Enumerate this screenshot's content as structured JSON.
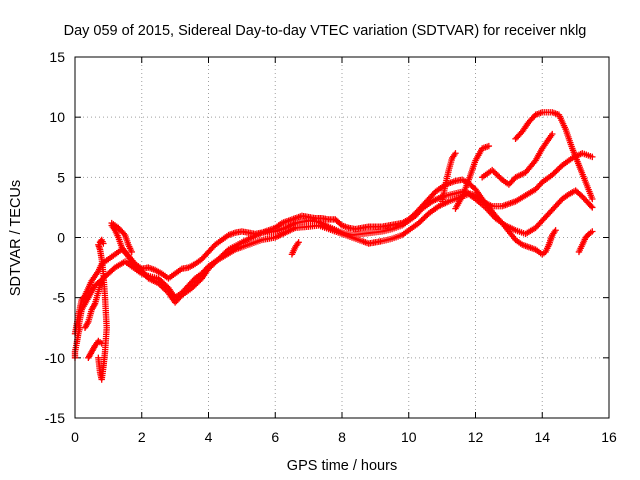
{
  "chart_data": {
    "type": "scatter",
    "title": "Day 059 of 2015, Sidereal Day-to-day VTEC variation (SDTVAR) for receiver nklg",
    "xlabel": "GPS time / hours",
    "ylabel": "SDTVAR / TECUs",
    "xlim": [
      0,
      16
    ],
    "ylim": [
      -15,
      15
    ],
    "xticks": [
      0,
      2,
      4,
      6,
      8,
      10,
      12,
      14,
      16
    ],
    "yticks": [
      -15,
      -10,
      -5,
      0,
      5,
      10,
      15
    ],
    "grid": true,
    "marker": "+",
    "color": "#ff0000",
    "series": [
      {
        "name": "trace-1",
        "points": [
          [
            0.0,
            -8.0
          ],
          [
            0.1,
            -6.5
          ],
          [
            0.2,
            -5.2
          ],
          [
            0.3,
            -4.8
          ],
          [
            0.4,
            -4.2
          ],
          [
            0.5,
            -3.6
          ],
          [
            0.6,
            -3.2
          ],
          [
            0.7,
            -2.8
          ],
          [
            0.8,
            -2.2
          ],
          [
            1.0,
            -1.8
          ],
          [
            1.2,
            -1.4
          ],
          [
            1.4,
            -1.0
          ],
          [
            1.6,
            -1.5
          ],
          [
            1.8,
            -2.2
          ],
          [
            2.0,
            -2.6
          ],
          [
            2.2,
            -2.5
          ],
          [
            2.4,
            -2.7
          ],
          [
            2.6,
            -3.0
          ],
          [
            2.8,
            -3.4
          ],
          [
            3.0,
            -3.0
          ],
          [
            3.2,
            -2.6
          ],
          [
            3.4,
            -2.5
          ],
          [
            3.6,
            -2.2
          ],
          [
            3.8,
            -1.8
          ],
          [
            4.0,
            -1.2
          ],
          [
            4.2,
            -0.6
          ],
          [
            4.4,
            -0.2
          ],
          [
            4.6,
            0.2
          ],
          [
            4.8,
            0.4
          ],
          [
            5.0,
            0.5
          ],
          [
            5.2,
            0.4
          ],
          [
            5.4,
            0.3
          ],
          [
            5.6,
            0.4
          ],
          [
            5.8,
            0.6
          ],
          [
            6.0,
            0.8
          ],
          [
            6.2,
            1.2
          ],
          [
            6.4,
            1.4
          ],
          [
            6.6,
            1.6
          ],
          [
            6.8,
            1.8
          ],
          [
            7.0,
            1.7
          ],
          [
            7.2,
            1.6
          ],
          [
            7.4,
            1.6
          ],
          [
            7.6,
            1.5
          ],
          [
            7.8,
            1.5
          ],
          [
            8.0,
            1.0
          ],
          [
            8.2,
            0.8
          ],
          [
            8.4,
            0.7
          ],
          [
            8.6,
            0.8
          ],
          [
            8.8,
            0.9
          ],
          [
            9.0,
            0.9
          ],
          [
            9.2,
            0.9
          ],
          [
            9.4,
            1.0
          ],
          [
            9.6,
            1.1
          ],
          [
            9.8,
            1.2
          ],
          [
            10.0,
            1.5
          ],
          [
            10.2,
            2.0
          ],
          [
            10.4,
            2.6
          ],
          [
            10.6,
            3.2
          ],
          [
            10.8,
            3.8
          ],
          [
            11.0,
            4.2
          ],
          [
            11.2,
            4.5
          ],
          [
            11.4,
            4.7
          ],
          [
            11.6,
            4.8
          ],
          [
            11.8,
            4.5
          ],
          [
            12.0,
            4.0
          ],
          [
            12.2,
            3.2
          ],
          [
            12.4,
            2.5
          ],
          [
            12.6,
            1.8
          ],
          [
            12.8,
            1.2
          ],
          [
            13.0,
            0.5
          ],
          [
            13.2,
            -0.2
          ],
          [
            13.4,
            -0.6
          ],
          [
            13.6,
            -0.8
          ],
          [
            13.8,
            -1.0
          ],
          [
            14.0,
            -1.4
          ],
          [
            14.1,
            -1.2
          ],
          [
            14.2,
            -0.6
          ],
          [
            14.3,
            0.2
          ]
        ]
      },
      {
        "name": "trace-2",
        "points": [
          [
            0.1,
            -7.5
          ],
          [
            0.2,
            -6.0
          ],
          [
            0.4,
            -5.0
          ],
          [
            0.6,
            -4.0
          ],
          [
            0.8,
            -3.5
          ],
          [
            1.0,
            -3.0
          ],
          [
            1.2,
            -2.5
          ],
          [
            1.5,
            -2.0
          ],
          [
            1.8,
            -2.6
          ],
          [
            2.0,
            -3.0
          ],
          [
            2.2,
            -3.2
          ],
          [
            2.5,
            -3.4
          ],
          [
            2.8,
            -4.2
          ],
          [
            3.0,
            -5.0
          ],
          [
            3.2,
            -4.6
          ],
          [
            3.4,
            -4.0
          ],
          [
            3.6,
            -3.4
          ],
          [
            3.8,
            -3.0
          ],
          [
            4.0,
            -2.4
          ],
          [
            4.2,
            -2.0
          ],
          [
            4.5,
            -1.5
          ],
          [
            4.8,
            -1.0
          ],
          [
            5.0,
            -0.8
          ],
          [
            5.3,
            -0.5
          ],
          [
            5.6,
            -0.2
          ],
          [
            6.0,
            0.0
          ],
          [
            6.3,
            0.4
          ],
          [
            6.6,
            0.8
          ],
          [
            7.0,
            0.9
          ],
          [
            7.3,
            1.0
          ],
          [
            7.6,
            0.7
          ],
          [
            8.0,
            0.3
          ],
          [
            8.3,
            0.0
          ],
          [
            8.6,
            -0.3
          ],
          [
            8.8,
            -0.5
          ],
          [
            9.0,
            -0.4
          ],
          [
            9.2,
            -0.3
          ],
          [
            9.5,
            -0.1
          ],
          [
            9.8,
            0.2
          ],
          [
            10.0,
            0.6
          ],
          [
            10.3,
            1.2
          ],
          [
            10.6,
            2.0
          ],
          [
            10.9,
            2.6
          ],
          [
            11.2,
            3.0
          ],
          [
            11.5,
            3.3
          ],
          [
            11.8,
            3.6
          ],
          [
            12.0,
            3.2
          ],
          [
            12.3,
            2.5
          ],
          [
            12.6,
            1.6
          ],
          [
            12.9,
            1.0
          ],
          [
            13.2,
            0.6
          ],
          [
            13.5,
            0.3
          ],
          [
            13.8,
            0.8
          ],
          [
            14.0,
            1.4
          ],
          [
            14.2,
            2.0
          ],
          [
            14.4,
            2.6
          ],
          [
            14.6,
            3.2
          ],
          [
            14.8,
            3.6
          ],
          [
            15.0,
            3.9
          ],
          [
            15.2,
            3.4
          ],
          [
            15.4,
            2.8
          ],
          [
            15.5,
            2.5
          ]
        ]
      },
      {
        "name": "trace-3",
        "points": [
          [
            1.1,
            1.0
          ],
          [
            1.2,
            0.6
          ],
          [
            1.3,
            0.0
          ],
          [
            1.4,
            -0.8
          ],
          [
            1.6,
            -1.6
          ],
          [
            1.8,
            -2.4
          ],
          [
            2.0,
            -2.8
          ],
          [
            2.2,
            -3.4
          ],
          [
            2.5,
            -3.8
          ],
          [
            2.8,
            -4.6
          ],
          [
            3.0,
            -5.4
          ],
          [
            3.2,
            -4.8
          ],
          [
            3.5,
            -4.2
          ],
          [
            3.8,
            -3.4
          ],
          [
            4.0,
            -2.6
          ],
          [
            4.3,
            -1.8
          ],
          [
            4.6,
            -1.0
          ],
          [
            5.0,
            -0.4
          ],
          [
            5.3,
            0.0
          ],
          [
            5.6,
            0.4
          ],
          [
            6.0,
            0.5
          ],
          [
            6.3,
            0.8
          ],
          [
            6.6,
            1.2
          ],
          [
            7.0,
            1.4
          ],
          [
            7.3,
            1.3
          ],
          [
            7.6,
            0.9
          ],
          [
            8.0,
            0.4
          ],
          [
            8.3,
            0.2
          ],
          [
            8.6,
            0.3
          ],
          [
            8.9,
            0.4
          ],
          [
            9.2,
            0.5
          ],
          [
            9.5,
            0.7
          ],
          [
            9.8,
            1.0
          ],
          [
            10.0,
            1.4
          ],
          [
            10.2,
            1.8
          ],
          [
            10.4,
            2.4
          ],
          [
            10.7,
            3.0
          ],
          [
            11.0,
            3.4
          ],
          [
            11.3,
            3.6
          ],
          [
            11.6,
            3.8
          ],
          [
            11.9,
            3.6
          ],
          [
            12.2,
            3.0
          ],
          [
            12.5,
            2.6
          ],
          [
            12.8,
            2.6
          ],
          [
            13.0,
            2.8
          ],
          [
            13.2,
            3.0
          ],
          [
            13.5,
            3.5
          ],
          [
            13.8,
            4.0
          ],
          [
            14.0,
            4.6
          ],
          [
            14.3,
            5.2
          ],
          [
            14.6,
            6.0
          ],
          [
            14.9,
            6.6
          ],
          [
            15.2,
            7.0
          ],
          [
            15.5,
            6.7
          ]
        ]
      },
      {
        "name": "trace-4",
        "points": [
          [
            11.0,
            3.0
          ],
          [
            11.1,
            4.4
          ],
          [
            11.2,
            5.6
          ],
          [
            11.3,
            6.6
          ],
          [
            11.4,
            7.0
          ]
        ]
      },
      {
        "name": "trace-5",
        "points": [
          [
            11.4,
            2.4
          ],
          [
            11.6,
            3.4
          ],
          [
            11.8,
            4.8
          ],
          [
            12.0,
            6.4
          ],
          [
            12.2,
            7.4
          ],
          [
            12.4,
            7.6
          ]
        ]
      },
      {
        "name": "trace-6",
        "points": [
          [
            12.2,
            5.0
          ],
          [
            12.5,
            5.6
          ],
          [
            12.8,
            4.8
          ],
          [
            13.0,
            4.4
          ],
          [
            13.2,
            5.0
          ],
          [
            13.5,
            5.4
          ],
          [
            13.8,
            6.4
          ],
          [
            14.0,
            7.4
          ],
          [
            14.2,
            8.2
          ],
          [
            14.3,
            8.6
          ]
        ]
      },
      {
        "name": "trace-7",
        "points": [
          [
            13.2,
            8.2
          ],
          [
            13.4,
            8.8
          ],
          [
            13.6,
            9.6
          ],
          [
            13.8,
            10.2
          ],
          [
            14.0,
            10.4
          ],
          [
            14.3,
            10.4
          ],
          [
            14.5,
            10.2
          ],
          [
            14.7,
            9.0
          ],
          [
            14.9,
            7.4
          ],
          [
            15.1,
            6.0
          ],
          [
            15.3,
            4.6
          ],
          [
            15.5,
            3.2
          ]
        ]
      },
      {
        "name": "trace-8",
        "points": [
          [
            14.2,
            -0.6
          ],
          [
            14.3,
            0.2
          ],
          [
            14.4,
            0.6
          ]
        ]
      },
      {
        "name": "trace-9",
        "points": [
          [
            15.1,
            -1.2
          ],
          [
            15.2,
            -0.6
          ],
          [
            15.3,
            0.0
          ],
          [
            15.4,
            0.3
          ],
          [
            15.5,
            0.5
          ]
        ]
      },
      {
        "name": "trace-10",
        "points": [
          [
            6.5,
            -1.4
          ],
          [
            6.6,
            -0.8
          ],
          [
            6.7,
            -0.4
          ]
        ]
      },
      {
        "name": "trace-11",
        "points": [
          [
            0.0,
            -10.0
          ],
          [
            0.0,
            -9.5
          ],
          [
            0.05,
            -8.8
          ],
          [
            0.1,
            -8.0
          ],
          [
            0.15,
            -7.5
          ]
        ]
      },
      {
        "name": "trace-12",
        "points": [
          [
            0.3,
            -7.5
          ],
          [
            0.4,
            -7.0
          ],
          [
            0.5,
            -6.0
          ],
          [
            0.6,
            -5.5
          ],
          [
            0.7,
            -4.5
          ],
          [
            0.8,
            -3.5
          ]
        ]
      },
      {
        "name": "trace-13",
        "points": [
          [
            0.4,
            -10.0
          ],
          [
            0.5,
            -9.5
          ],
          [
            0.6,
            -9.0
          ],
          [
            0.7,
            -8.6
          ],
          [
            0.8,
            -8.8
          ]
        ]
      },
      {
        "name": "trace-14",
        "points": [
          [
            0.7,
            -0.6
          ],
          [
            0.75,
            -1.0
          ],
          [
            0.8,
            -1.8
          ],
          [
            0.85,
            -3.0
          ],
          [
            0.9,
            -5.0
          ],
          [
            0.95,
            -7.5
          ],
          [
            0.9,
            -9.5
          ],
          [
            0.85,
            -10.8
          ],
          [
            0.8,
            -11.8
          ],
          [
            0.75,
            -11.2
          ],
          [
            0.7,
            -10.0
          ]
        ]
      },
      {
        "name": "trace-15",
        "points": [
          [
            0.75,
            -0.4
          ],
          [
            0.8,
            -0.2
          ],
          [
            0.85,
            -0.5
          ]
        ]
      },
      {
        "name": "trace-16",
        "points": [
          [
            1.1,
            1.2
          ],
          [
            1.3,
            0.8
          ],
          [
            1.5,
            0.2
          ],
          [
            1.6,
            -0.6
          ],
          [
            1.7,
            -1.2
          ]
        ]
      }
    ]
  }
}
